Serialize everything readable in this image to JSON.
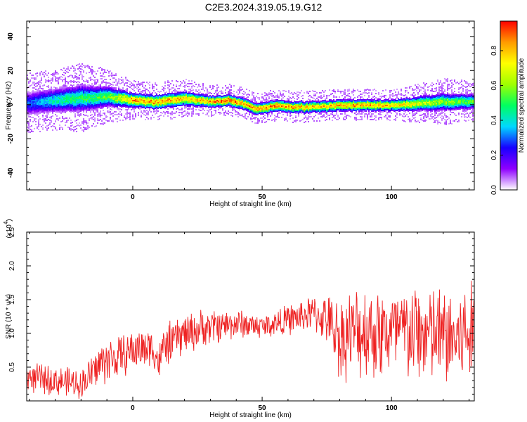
{
  "title": "C2E3.2024.319.05.19.G12",
  "chart_data": [
    {
      "type": "heatmap",
      "xlabel": "Height of straight line (km)",
      "ylabel": "Frequency (Hz)",
      "xlim": [
        -41,
        132
      ],
      "ylim": [
        -50,
        49
      ],
      "xticks": [
        0,
        50,
        100
      ],
      "yticks": [
        -40,
        -20,
        0,
        20,
        40
      ],
      "colorbar": {
        "label": "Normalized spectral amplitude",
        "ticks": [
          "0.0",
          "0.2",
          "0.4",
          "0.6",
          "0.8"
        ],
        "range": [
          0,
          0.97
        ],
        "colors": [
          "#ffffff",
          "#8f00ff",
          "#1800ff",
          "#00d8ff",
          "#00ff60",
          "#9fff00",
          "#ffff00",
          "#ff9a00",
          "#ff0000"
        ]
      },
      "ridge": {
        "x": [
          -40,
          -30,
          -20,
          -10,
          0,
          10,
          20,
          30,
          37,
          42,
          47,
          50,
          55,
          60,
          70,
          80,
          90,
          100,
          110,
          120,
          132
        ],
        "y": [
          1,
          3,
          4,
          5,
          3,
          2,
          4,
          2,
          3,
          1,
          -2,
          -2,
          0,
          -1,
          -1,
          0,
          0,
          0,
          1,
          2,
          2
        ],
        "peak_amplitude": [
          0.3,
          0.45,
          0.5,
          0.55,
          0.85,
          0.85,
          0.8,
          0.85,
          0.95,
          0.85,
          0.9,
          0.85,
          0.9,
          0.85,
          0.8,
          0.85,
          0.85,
          0.8,
          0.7,
          0.6,
          0.55
        ],
        "halfwidth_hz": [
          8,
          8,
          9,
          7,
          5,
          5,
          5,
          4,
          4,
          4,
          4,
          4,
          4,
          4,
          4,
          4,
          4,
          4,
          5,
          6,
          5
        ]
      }
    },
    {
      "type": "line",
      "xlabel": "Height of straight line (km)",
      "ylabel": "SNR (10 * v/v)",
      "exponent_label": "(x10",
      "exponent": "4",
      "xlim": [
        -41,
        132
      ],
      "ylim": [
        0,
        25000
      ],
      "xticks": [
        0,
        50,
        100
      ],
      "yticks": [
        5000,
        10000,
        15000,
        20000,
        25000
      ],
      "ytick_labels": [
        "0.5",
        "1.0",
        "1.5",
        "2.0",
        "2.5"
      ],
      "color": "#ee2222",
      "envelope": {
        "x": [
          -41,
          -30,
          -20,
          -11,
          -5,
          0,
          8,
          10,
          12,
          20,
          30,
          40,
          50,
          60,
          70,
          75,
          80,
          90,
          100,
          110,
          120,
          125,
          130,
          132
        ],
        "mean": [
          3500,
          3000,
          2500,
          6000,
          6500,
          7500,
          8000,
          5500,
          8000,
          10000,
          11000,
          11500,
          11000,
          12000,
          13000,
          12000,
          9500,
          10500,
          10000,
          10000,
          9500,
          9000,
          10000,
          10500
        ],
        "spread": [
          2500,
          2500,
          2500,
          4000,
          3500,
          3500,
          3500,
          3000,
          3500,
          3500,
          3000,
          2500,
          2000,
          2500,
          3000,
          4000,
          7000,
          8000,
          8000,
          8500,
          8500,
          8500,
          9000,
          7500
        ]
      }
    }
  ]
}
